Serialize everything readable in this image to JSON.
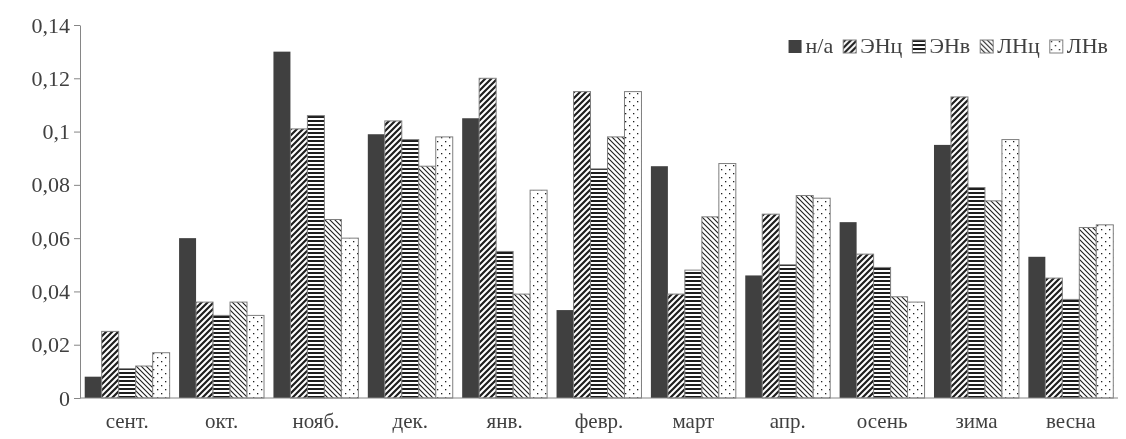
{
  "chart_data": {
    "type": "bar",
    "categories": [
      "сент.",
      "окт.",
      "нояб.",
      "дек.",
      "янв.",
      "февр.",
      "март",
      "апр.",
      "осень",
      "зима",
      "весна"
    ],
    "series": [
      {
        "name": "н/а",
        "color": "#404040",
        "values": [
          0.008,
          0.06,
          0.13,
          0.099,
          0.105,
          0.033,
          0.087,
          0.046,
          0.066,
          0.095,
          0.053
        ]
      },
      {
        "name": "ЭНц",
        "color": "#7f7f7f",
        "values": [
          0.025,
          0.036,
          0.101,
          0.104,
          0.12,
          0.115,
          0.039,
          0.069,
          0.054,
          0.113,
          0.045
        ]
      },
      {
        "name": "ЭНв",
        "color": "#7f7f7f",
        "values": [
          0.011,
          0.031,
          0.106,
          0.097,
          0.055,
          0.086,
          0.048,
          0.05,
          0.049,
          0.079,
          0.037
        ]
      },
      {
        "name": "ЛНц",
        "color": "#7f7f7f",
        "values": [
          0.012,
          0.036,
          0.067,
          0.087,
          0.039,
          0.098,
          0.068,
          0.076,
          0.038,
          0.074,
          0.064
        ]
      },
      {
        "name": "ЛНв",
        "color": "#7f7f7f",
        "values": [
          0.017,
          0.031,
          0.06,
          0.098,
          0.078,
          0.115,
          0.088,
          0.075,
          0.036,
          0.097,
          0.065
        ]
      }
    ],
    "ylim": [
      0,
      0.14
    ],
    "yticks": [
      {
        "value": 0,
        "label": "0"
      },
      {
        "value": 0.02,
        "label": "0,02"
      },
      {
        "value": 0.04,
        "label": "0,04"
      },
      {
        "value": 0.06,
        "label": "0,06"
      },
      {
        "value": 0.08,
        "label": "0,08"
      },
      {
        "value": 0.1,
        "label": "0,1"
      },
      {
        "value": 0.12,
        "label": "0,12"
      },
      {
        "value": 0.14,
        "label": "0,14"
      }
    ],
    "grid": false,
    "legend": "top right"
  }
}
